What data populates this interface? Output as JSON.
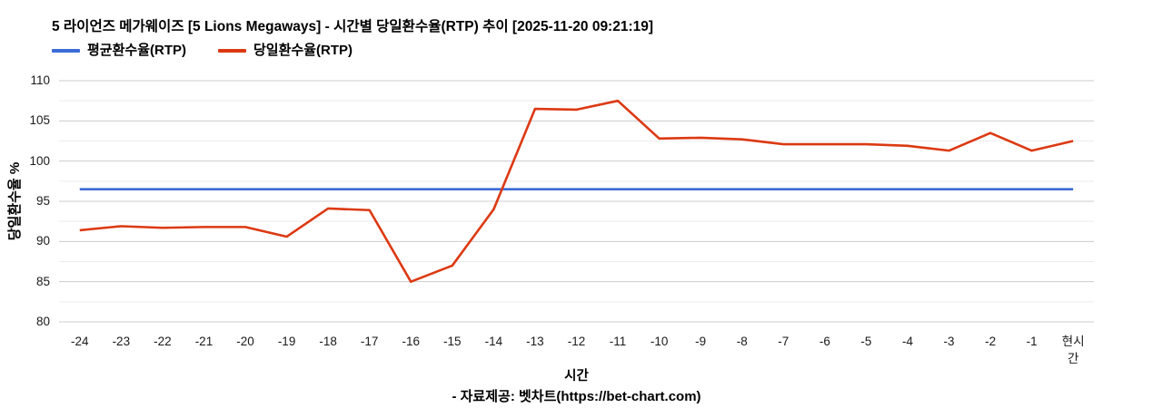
{
  "title": "5 라이언즈 메가웨이즈 [5 Lions Megaways] - 시간별 당일환수율(RTP) 추이 [2025-11-20 09:21:19]",
  "legend": {
    "items": [
      {
        "key": "avg",
        "label": "평균환수율(RTP)",
        "color": "#3b6bd6"
      },
      {
        "key": "daily",
        "label": "당일환수율(RTP)",
        "color": "#dc3912"
      }
    ]
  },
  "chart_data": {
    "type": "line",
    "title": "5 라이언즈 메가웨이즈 [5 Lions Megaways] - 시간별 당일환수율(RTP) 추이 [2025-11-20 09:21:19]",
    "xlabel": "시간",
    "ylabel": "당일환수율 %",
    "ylim": [
      80,
      110
    ],
    "yticks": [
      110,
      105,
      100,
      95,
      90,
      85,
      80
    ],
    "ytick_step": 5,
    "minor_step": 2.5,
    "grid": true,
    "legend_position": "top",
    "categories": [
      "-24",
      "-23",
      "-22",
      "-21",
      "-20",
      "-19",
      "-18",
      "-17",
      "-16",
      "-15",
      "-14",
      "-13",
      "-12",
      "-11",
      "-10",
      "-9",
      "-8",
      "-7",
      "-6",
      "-5",
      "-4",
      "-3",
      "-2",
      "-1",
      "현시간"
    ],
    "series": [
      {
        "key": "avg",
        "name": "평균환수율(RTP)",
        "color": "#3b6bd6",
        "constant": 96.5
      },
      {
        "key": "daily",
        "name": "당일환수율(RTP)",
        "color": "#dc3912",
        "values": [
          91.4,
          91.9,
          91.7,
          91.8,
          91.8,
          90.6,
          94.1,
          93.9,
          85.0,
          87.0,
          94.0,
          106.5,
          106.4,
          107.5,
          102.8,
          102.9,
          102.7,
          102.1,
          102.1,
          102.1,
          101.9,
          101.3,
          103.5,
          101.3,
          102.5
        ]
      }
    ]
  },
  "footer": {
    "attribution": "- 자료제공: 벳차트(https://bet-chart.com)"
  }
}
